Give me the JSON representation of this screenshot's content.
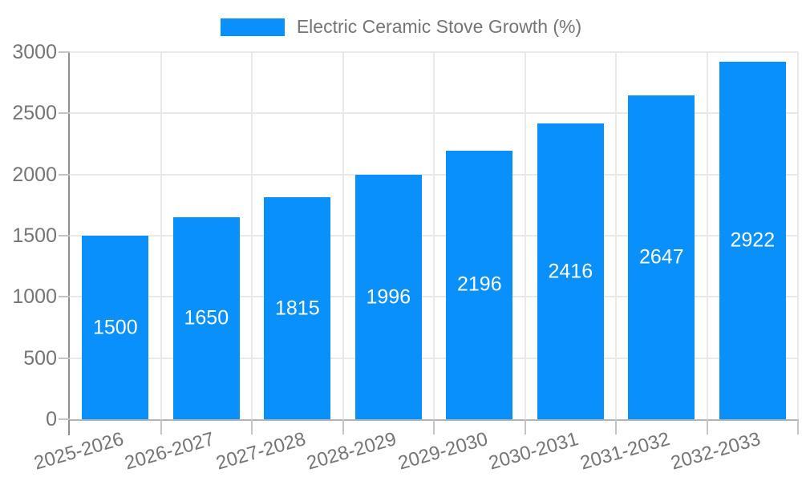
{
  "chart_data": {
    "type": "bar",
    "title": "Electric Ceramic Stove Growth (%)",
    "categories": [
      "2025-2026",
      "2026-2027",
      "2027-2028",
      "2028-2029",
      "2029-2030",
      "2030-2031",
      "2031-2032",
      "2032-2033"
    ],
    "values": [
      1500,
      1650,
      1815,
      1996,
      2196,
      2416,
      2647,
      2922
    ],
    "xlabel": "",
    "ylabel": "",
    "ylim": [
      0,
      3000
    ],
    "yticks": [
      0,
      500,
      1000,
      1500,
      2000,
      2500,
      3000
    ],
    "grid": true,
    "legend_position": "top",
    "value_labels": "inside-center"
  },
  "legend": {
    "label": "Electric Ceramic Stove Growth (%)"
  },
  "colors": {
    "bar": "#0990fb",
    "value_label": "#ffffff",
    "axis_text": "#757575",
    "grid": "#e9e9e9",
    "axis_y": "#909090",
    "axis_x": "#b3b3b3",
    "tick": "#c4c4c4",
    "background": "#ffffff"
  }
}
